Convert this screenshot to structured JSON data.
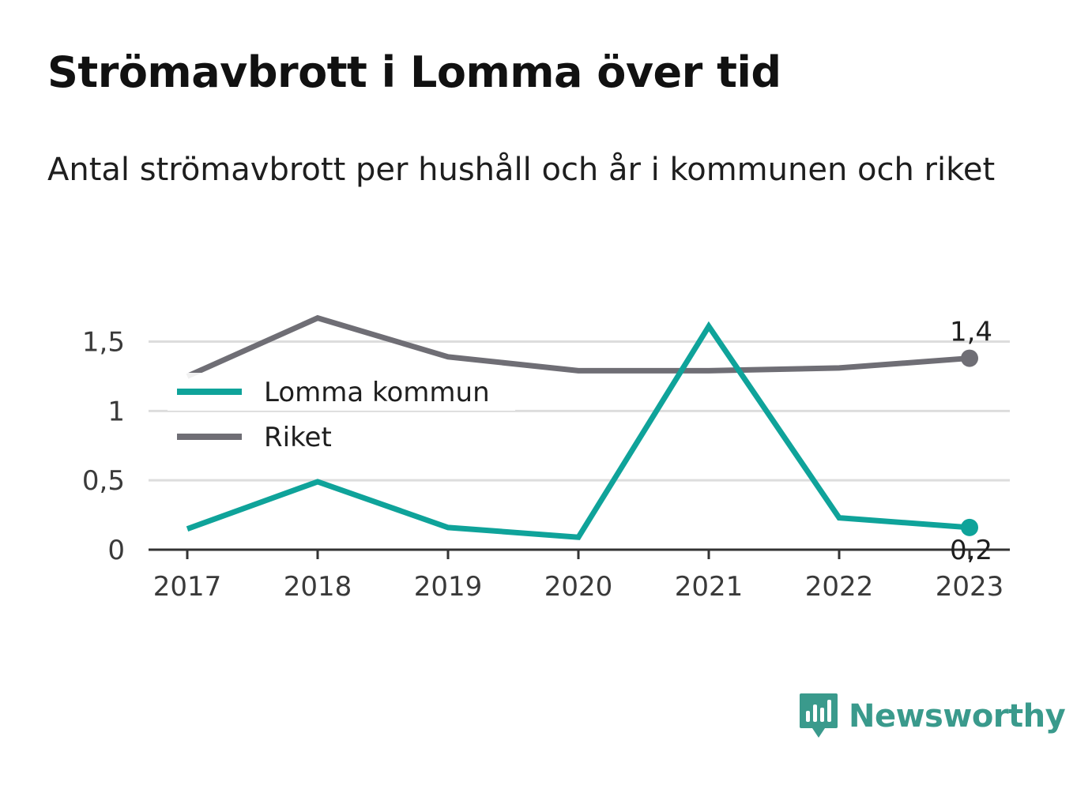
{
  "header": {
    "title": "Strömavbrott i Lomma över tid",
    "subtitle": "Antal strömavbrott per hushåll och år i kommunen och riket"
  },
  "colors": {
    "lomma": "#0fa39a",
    "riket": "#6f6e75",
    "grid": "#dddddd",
    "axis": "#333333",
    "brand": "#3a9a8c"
  },
  "brand": {
    "name": "Newsworthy",
    "icon": "bar-chart-speech-bubble-icon"
  },
  "chart_data": {
    "type": "line",
    "categories": [
      "2017",
      "2018",
      "2019",
      "2020",
      "2021",
      "2022",
      "2023"
    ],
    "series": [
      {
        "name": "Lomma kommun",
        "values": [
          0.15,
          0.49,
          0.16,
          0.09,
          1.61,
          0.23,
          0.16
        ]
      },
      {
        "name": "Riket",
        "values": [
          1.25,
          1.67,
          1.39,
          1.29,
          1.29,
          1.31,
          1.38
        ]
      }
    ],
    "yticks": [
      {
        "value": 0,
        "label": "0"
      },
      {
        "value": 0.5,
        "label": "0,5"
      },
      {
        "value": 1,
        "label": "1"
      },
      {
        "value": 1.5,
        "label": "1,5"
      }
    ],
    "ylim": [
      0,
      1.85
    ],
    "end_labels": {
      "Lomma kommun": "0,2",
      "Riket": "1,4"
    },
    "legend_position": "top-left",
    "grid": true
  }
}
